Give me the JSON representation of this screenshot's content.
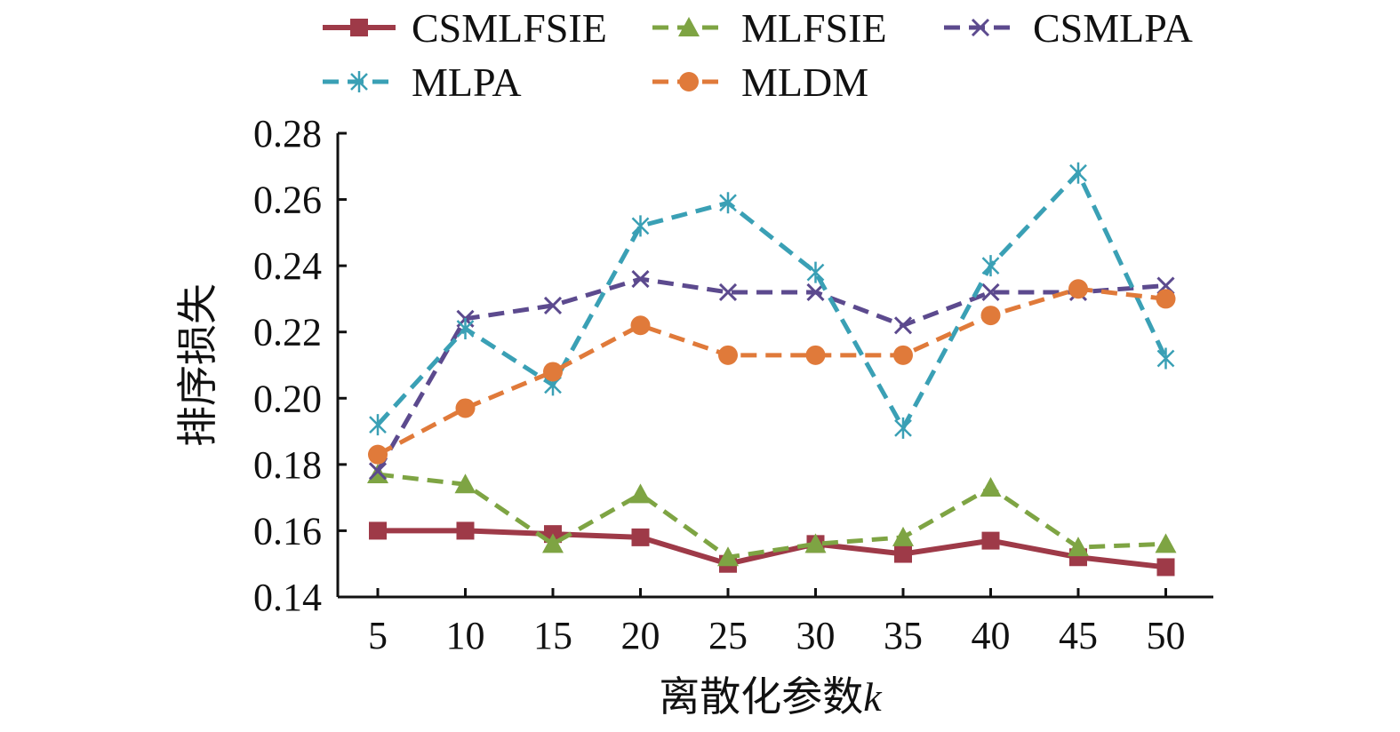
{
  "chart_data": {
    "type": "line",
    "title": "",
    "xlabel": "离散化参数",
    "xlabel_italic_suffix": "k",
    "ylabel": "排序损失",
    "x": [
      5,
      10,
      15,
      20,
      25,
      30,
      35,
      40,
      45,
      50
    ],
    "ylim": [
      0.14,
      0.28
    ],
    "yticks": [
      "0.14",
      "0.16",
      "0.18",
      "0.20",
      "0.22",
      "0.24",
      "0.26",
      "0.28"
    ],
    "grid": false,
    "legend": "top",
    "series": [
      {
        "name": "CSMLFSIE",
        "color": "#9e3a48",
        "dash": "solid",
        "marker": "square",
        "values": [
          0.16,
          0.16,
          0.159,
          0.158,
          0.15,
          0.156,
          0.153,
          0.157,
          0.152,
          0.149
        ]
      },
      {
        "name": "MLFSIE",
        "color": "#7ea443",
        "dash": "dashed",
        "marker": "triangle",
        "values": [
          0.177,
          0.174,
          0.156,
          0.171,
          0.152,
          0.156,
          0.158,
          0.173,
          0.155,
          0.156
        ]
      },
      {
        "name": "CSMLPA",
        "color": "#5c4a8e",
        "dash": "dashed",
        "marker": "x",
        "values": [
          0.178,
          0.224,
          0.228,
          0.236,
          0.232,
          0.232,
          0.222,
          0.232,
          0.232,
          0.234
        ]
      },
      {
        "name": "MLPA",
        "color": "#3aa0b5",
        "dash": "dashed",
        "marker": "asterisk",
        "values": [
          0.192,
          0.221,
          0.204,
          0.252,
          0.259,
          0.238,
          0.191,
          0.24,
          0.268,
          0.212
        ]
      },
      {
        "name": "MLDM",
        "color": "#e07a3a",
        "dash": "dashed",
        "marker": "circle",
        "values": [
          0.183,
          0.197,
          0.208,
          0.222,
          0.213,
          0.213,
          0.213,
          0.225,
          0.233,
          0.23
        ]
      }
    ]
  }
}
